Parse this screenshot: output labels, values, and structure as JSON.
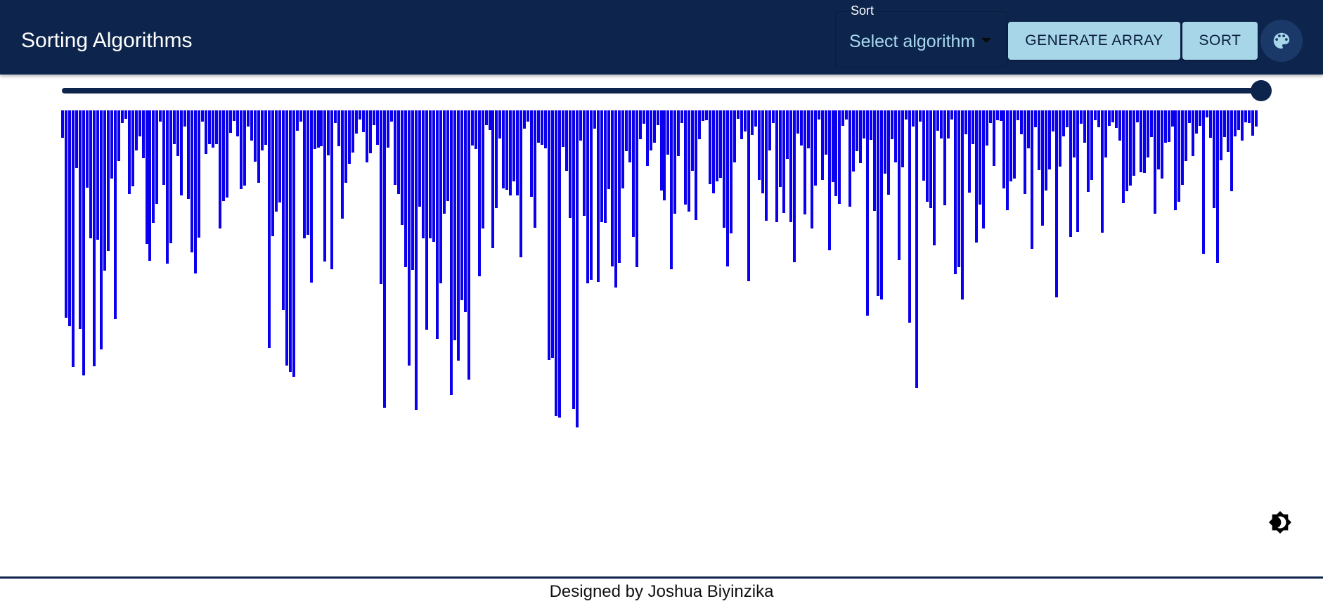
{
  "header": {
    "title": "Sorting Algorithms",
    "sort_select": {
      "label": "Sort",
      "value": "Select algorithm"
    },
    "generate_label": "GENERATE ARRAY",
    "sort_label": "SORT",
    "palette_icon": "palette-icon"
  },
  "array_size_slider": {
    "value": 1.0
  },
  "bars": {
    "color": "#0b00ee",
    "values": [
      39,
      295,
      307,
      365,
      82,
      311,
      377,
      110,
      182,
      364,
      184,
      340,
      228,
      200,
      97,
      297,
      72,
      18,
      12,
      119,
      108,
      57,
      37,
      68,
      190,
      214,
      160,
      133,
      16,
      106,
      218,
      189,
      48,
      65,
      121,
      23,
      126,
      202,
      232,
      181,
      16,
      62,
      48,
      53,
      48,
      168,
      129,
      124,
      32,
      15,
      37,
      112,
      107,
      23,
      43,
      73,
      103,
      57,
      49,
      338,
      179,
      144,
      131,
      284,
      363,
      372,
      379,
      29,
      16,
      182,
      177,
      245,
      55,
      53,
      51,
      215,
      64,
      226,
      18,
      51,
      154,
      103,
      76,
      60,
      33,
      13,
      31,
      74,
      61,
      21,
      49,
      247,
      423,
      53,
      16,
      106,
      119,
      163,
      223,
      363,
      227,
      426,
      137,
      182,
      312,
      182,
      187,
      325,
      246,
      147,
      129,
      405,
      327,
      356,
      270,
      287,
      383,
      50,
      55,
      236,
      168,
      21,
      28,
      196,
      139,
      40,
      111,
      113,
      121,
      101,
      121,
      209,
      26,
      16,
      123,
      167,
      46,
      49,
      54,
      355,
      352,
      435,
      437,
      52,
      86,
      153,
      425,
      451,
      43,
      150,
      246,
      241,
      26,
      244,
      159,
      160,
      112,
      222,
      252,
      217,
      111,
      58,
      74,
      180,
      223,
      41,
      19,
      79,
      57,
      46,
      21,
      114,
      128,
      63,
      226,
      147,
      65,
      18,
      134,
      144,
      86,
      156,
      41,
      15,
      14,
      105,
      118,
      101,
      96,
      167,
      222,
      175,
      74,
      12,
      41,
      30,
      243,
      35,
      23,
      99,
      118,
      157,
      57,
      18,
      159,
      109,
      146,
      69,
      159,
      216,
      33,
      50,
      148,
      54,
      168,
      107,
      13,
      99,
      63,
      199,
      102,
      122,
      133,
      22,
      13,
      137,
      87,
      58,
      75,
      40,
      292,
      42,
      143,
      264,
      269,
      90,
      120,
      41,
      74,
      213,
      81,
      13,
      302,
      23,
      395,
      16,
      100,
      130,
      139,
      192,
      29,
      40,
      135,
      40,
      13,
      233,
      223,
      269,
      34,
      117,
      48,
      188,
      134,
      168,
      50,
      18,
      79,
      14,
      15,
      111,
      142,
      101,
      97,
      14,
      34,
      119,
      54,
      197,
      24,
      85,
      164,
      114,
      84,
      30,
      266,
      80,
      37,
      24,
      180,
      67,
      173,
      19,
      46,
      116,
      99,
      14,
      24,
      174,
      67,
      22,
      17,
      25,
      43,
      132,
      115,
      107,
      93,
      17,
      88,
      89,
      67,
      38,
      147,
      84,
      97,
      46,
      45,
      23,
      142,
      130,
      106,
      72,
      18,
      65,
      33,
      22,
      204,
      10,
      39,
      139,
      217,
      71,
      38,
      59,
      115,
      37,
      28,
      43,
      17,
      18,
      36,
      23
    ]
  },
  "theme_toggle": {
    "icon": "brightness-icon"
  },
  "footer": {
    "text": "Designed by Joshua Biyinzika"
  }
}
